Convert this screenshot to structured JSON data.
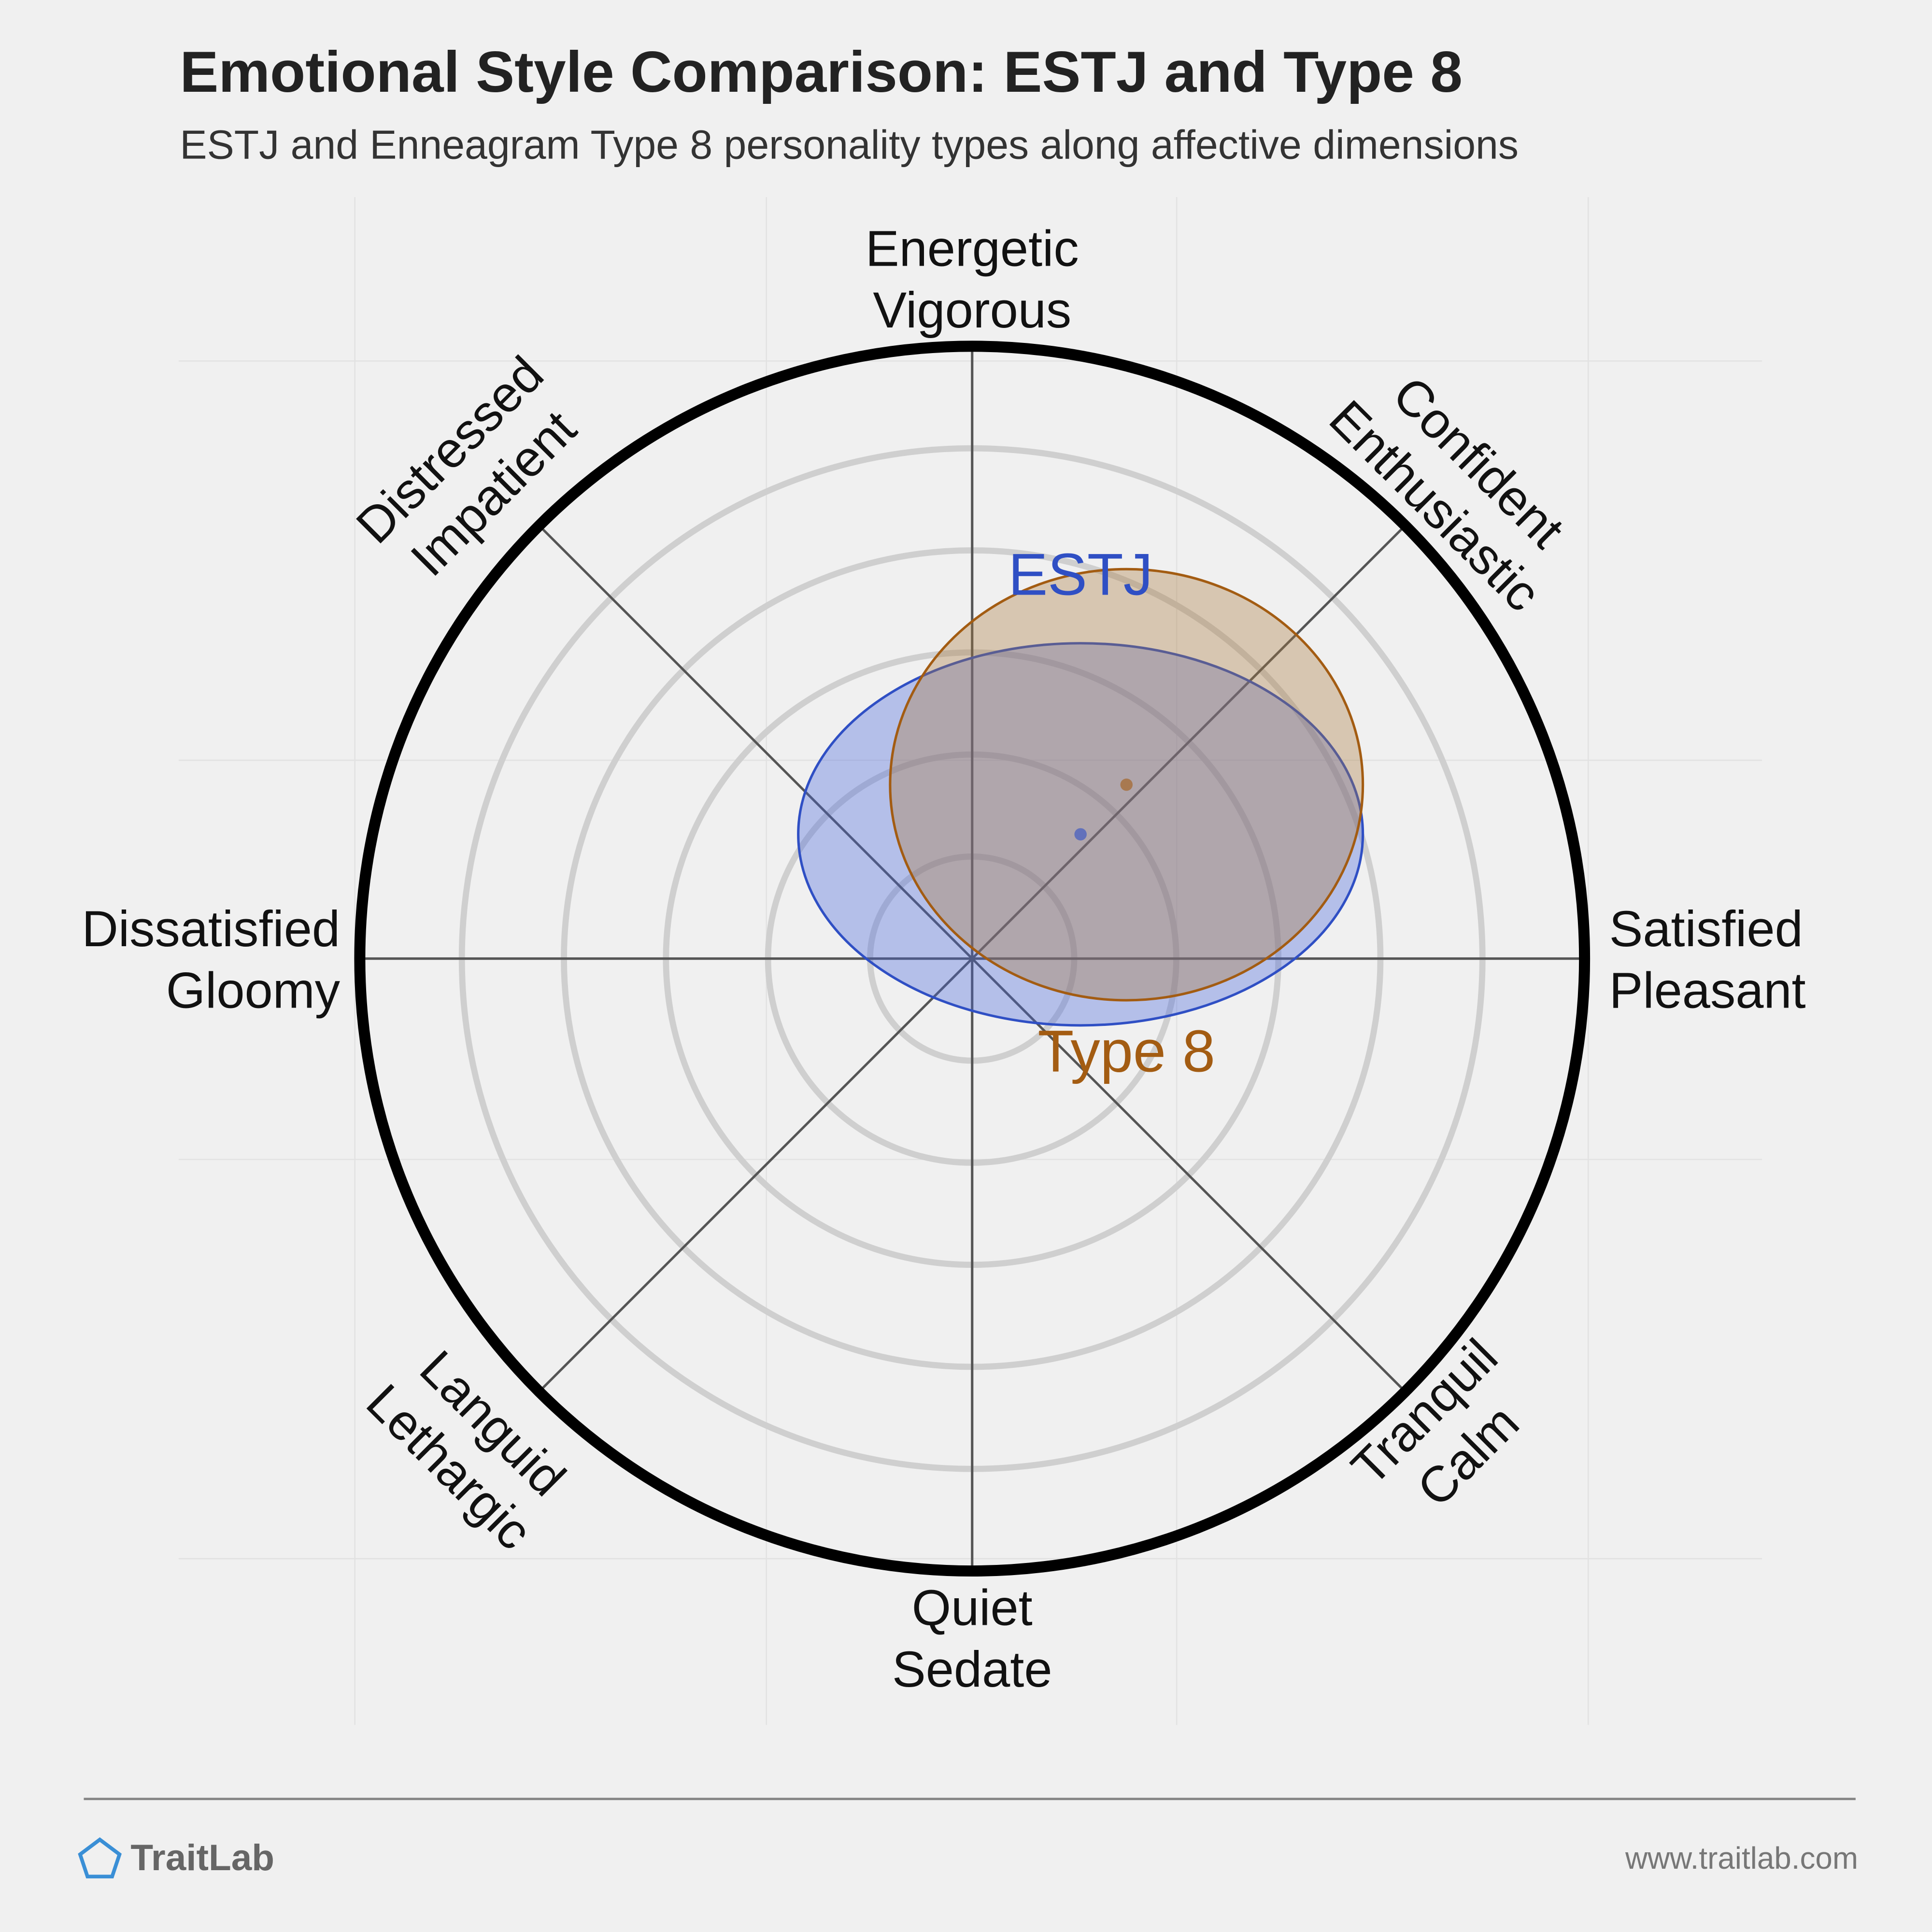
{
  "chart_data": {
    "type": "circumplex",
    "title": "Emotional Style Comparison: ESTJ and Type 8",
    "subtitle": "ESTJ and Enneagram Type 8 personality types along affective dimensions",
    "xlim": [
      -1,
      1
    ],
    "ylim": [
      -1,
      1
    ],
    "axes": [
      [
        "Energetic",
        "Vigorous"
      ],
      [
        "Confident",
        "Enthusiastic"
      ],
      [
        "Satisfied",
        "Pleasant"
      ],
      [
        "Tranquil",
        "Calm"
      ],
      [
        "Quiet",
        "Sedate"
      ],
      [
        "Languid",
        "Lethargic"
      ],
      [
        "Dissatisfied",
        "Gloomy"
      ],
      [
        "Distressed",
        "Impatient"
      ]
    ],
    "series": [
      {
        "name": "ESTJ",
        "color": "#2f4fc4",
        "x": 0.177,
        "y": 0.203,
        "rx": 0.461,
        "ry": 0.312
      },
      {
        "name": "Type 8",
        "color": "#a35c12",
        "x": 0.252,
        "y": 0.284,
        "rx": 0.386,
        "ry": 0.352
      }
    ],
    "brand": "TraitLab",
    "url": "www.traitlab.com"
  }
}
